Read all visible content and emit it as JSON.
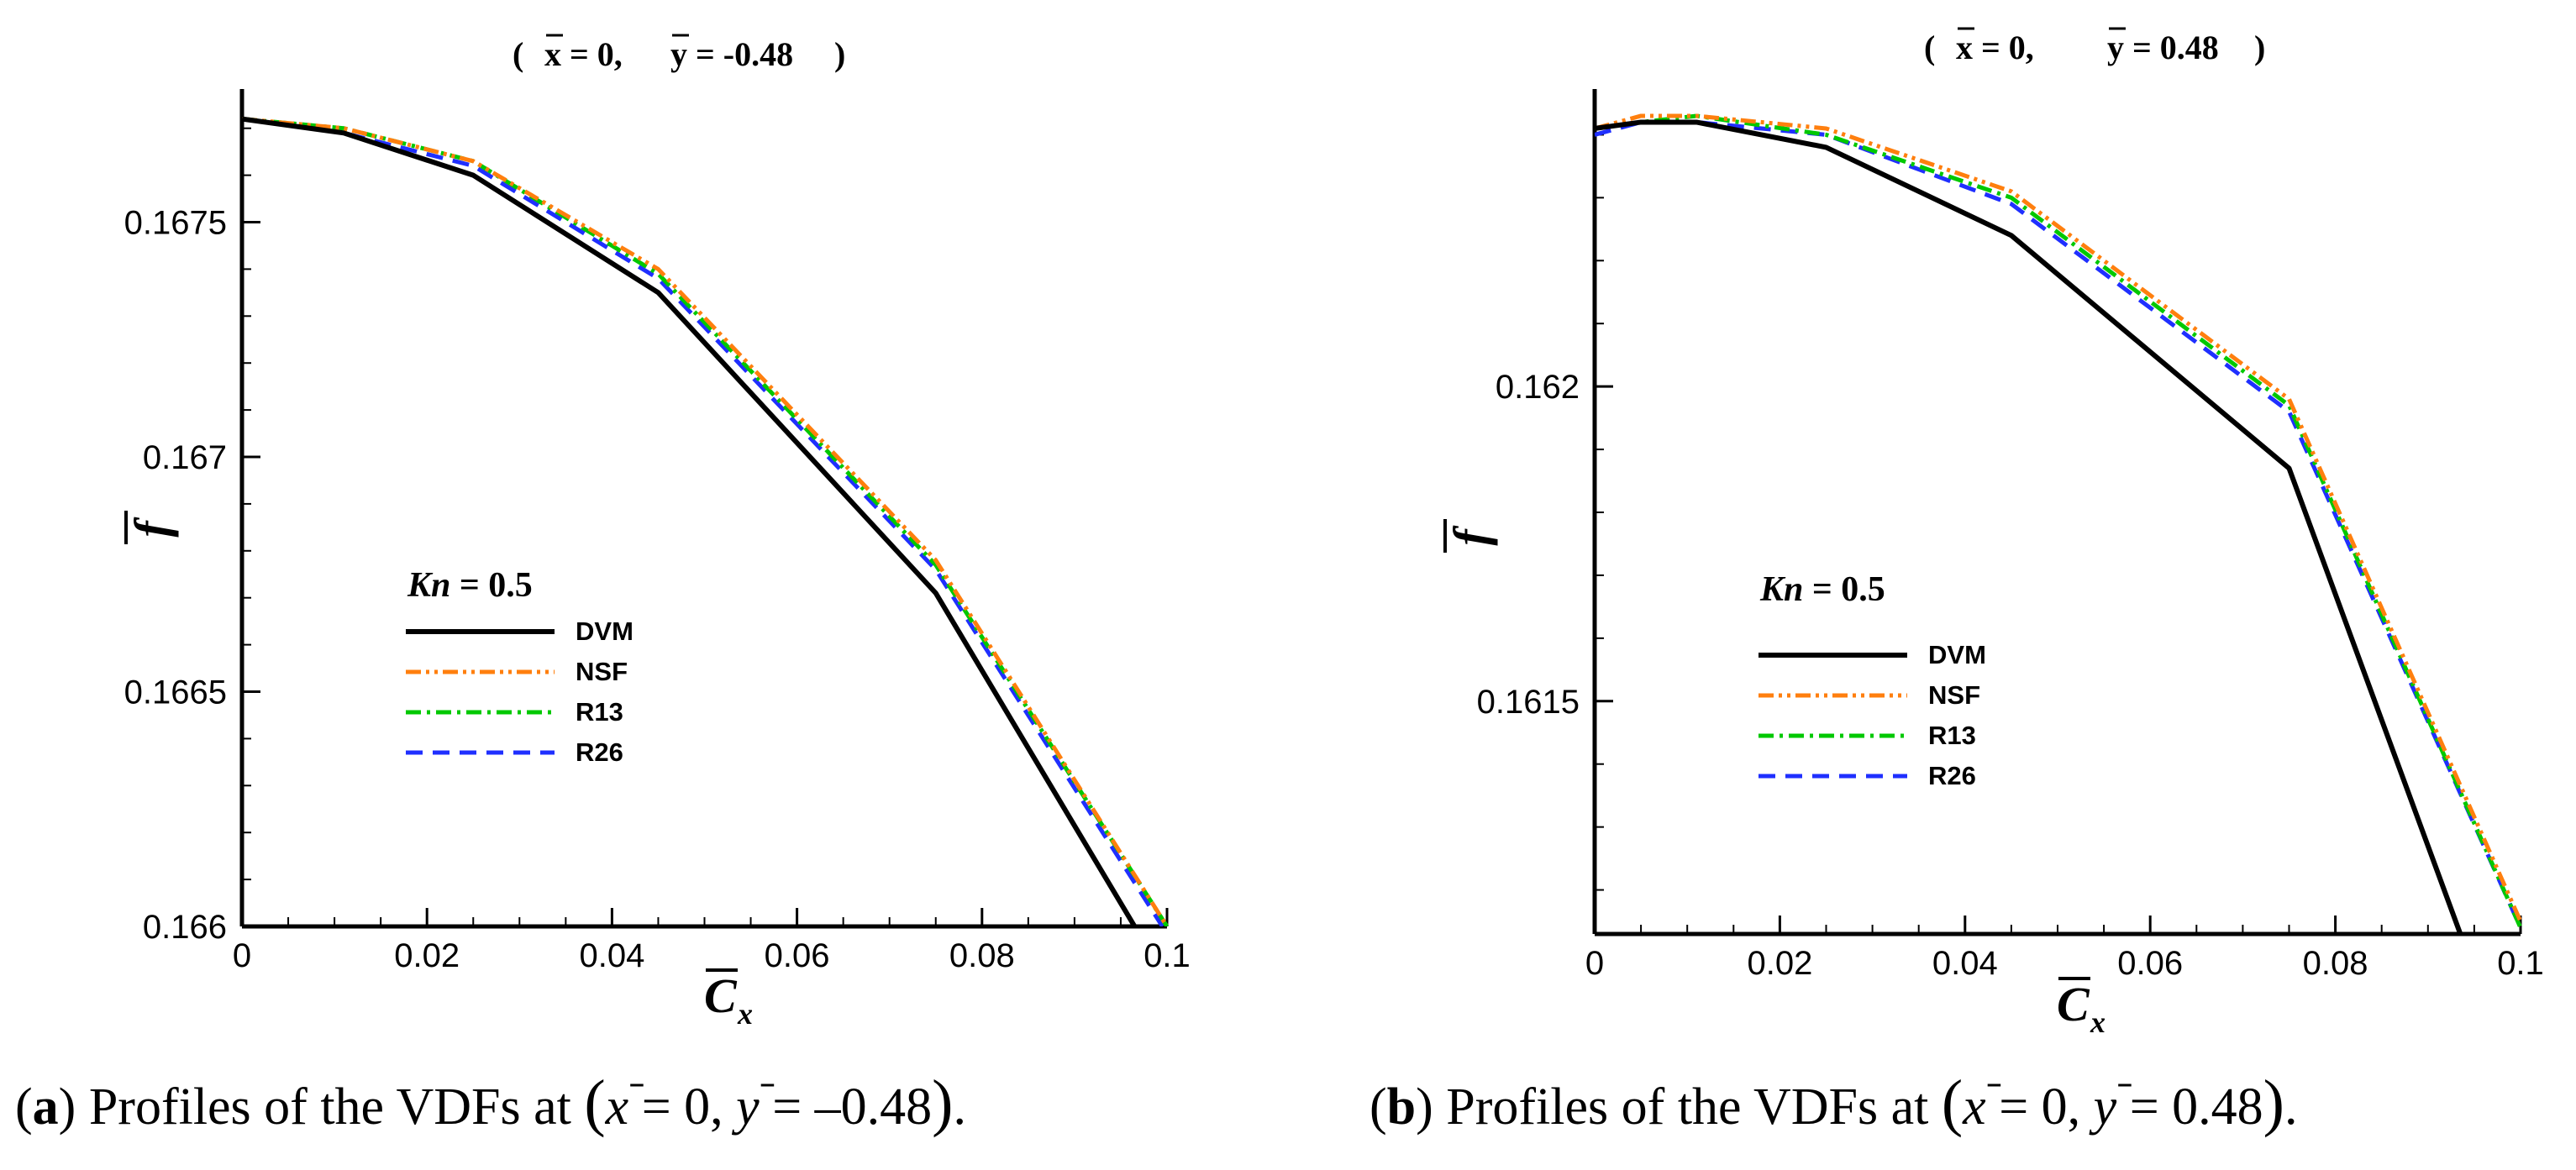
{
  "colors": {
    "DVM": "#000000",
    "NSF": "#ff7f0e",
    "R13": "#00c800",
    "R26": "#1f2fff"
  },
  "chart_data": [
    {
      "type": "line",
      "panel_id": "a",
      "title_prefix": "(",
      "title_xbar": "x",
      "title_xval": "= 0,",
      "title_ybar": "y",
      "title_yval": "= -0.48",
      "title_suffix": ")",
      "xlabel": "C",
      "xlabel_sub": "x",
      "ylabel": "f",
      "xlim": [
        0,
        0.1
      ],
      "ylim": [
        0.166,
        0.16778
      ],
      "xticks": [
        0,
        0.02,
        0.04,
        0.06,
        0.08,
        0.1
      ],
      "xtick_labels": [
        "0",
        "0.02",
        "0.04",
        "0.06",
        "0.08",
        "0.1"
      ],
      "yticks": [
        0.166,
        0.1665,
        0.167,
        0.1675
      ],
      "ytick_labels": [
        "0.166",
        "0.1665",
        "0.167",
        "0.1675"
      ],
      "yminor": [
        0.1661,
        0.1662,
        0.1663,
        0.1664,
        0.1666,
        0.1667,
        0.1668,
        0.1669,
        0.1671,
        0.1672,
        0.1673,
        0.1674,
        0.1676,
        0.1677
      ],
      "legend_title": "Kn = 0.5",
      "legend_title_var": "Kn",
      "legend_title_val": " = 0.5",
      "series": [
        {
          "name": "DVM",
          "x": [
            0,
            0.011,
            0.025,
            0.045,
            0.075,
            0.0965
          ],
          "y": [
            0.16772,
            0.16769,
            0.1676,
            0.16735,
            0.16671,
            0.166
          ]
        },
        {
          "name": "NSF",
          "x": [
            0,
            0.011,
            0.025,
            0.045,
            0.075,
            0.1
          ],
          "y": [
            0.16772,
            0.1677,
            0.16763,
            0.1674,
            0.16678,
            0.166
          ]
        },
        {
          "name": "R13",
          "x": [
            0,
            0.011,
            0.025,
            0.045,
            0.075,
            0.1
          ],
          "y": [
            0.16772,
            0.1677,
            0.16763,
            0.16739,
            0.16677,
            0.166
          ]
        },
        {
          "name": "R26",
          "x": [
            0,
            0.011,
            0.025,
            0.045,
            0.075,
            0.0995
          ],
          "y": [
            0.16772,
            0.16769,
            0.16762,
            0.16738,
            0.16676,
            0.166
          ]
        }
      ],
      "caption_label": "a",
      "caption_text": " Profiles of the VDFs at ",
      "caption_math": "x = 0, y = −0.48",
      "caption_math_x": "x",
      "caption_math_xv": " = 0, ",
      "caption_math_y": "y",
      "caption_math_yv": " = –0.48"
    },
    {
      "type": "line",
      "panel_id": "b",
      "title_prefix": "(",
      "title_xbar": "x",
      "title_xval": "= 0,",
      "title_ybar": "y",
      "title_yval": "= 0.48",
      "title_suffix": ")",
      "xlabel": "C",
      "xlabel_sub": "x",
      "ylabel": "f",
      "xlim": [
        0,
        0.1
      ],
      "ylim": [
        0.16113,
        0.16247
      ],
      "xticks": [
        0,
        0.02,
        0.04,
        0.06,
        0.08,
        0.1
      ],
      "xtick_labels": [
        "0",
        "0.02",
        "0.04",
        "0.06",
        "0.08",
        "0.1"
      ],
      "yticks": [
        0.1615,
        0.162
      ],
      "ytick_labels": [
        "0.1615",
        "0.162"
      ],
      "yminor": [
        0.1612,
        0.1613,
        0.1614,
        0.1616,
        0.1617,
        0.1618,
        0.1619,
        0.1621,
        0.1622,
        0.1623,
        0.1624
      ],
      "legend_title": "Kn = 0.5",
      "legend_title_var": "Kn",
      "legend_title_val": " = 0.5",
      "series": [
        {
          "name": "DVM",
          "x": [
            0,
            0.005,
            0.011,
            0.025,
            0.045,
            0.075,
            0.0935
          ],
          "y": [
            0.16241,
            0.16242,
            0.16242,
            0.16238,
            0.16224,
            0.16187,
            0.16113
          ]
        },
        {
          "name": "NSF",
          "x": [
            0,
            0.005,
            0.011,
            0.025,
            0.045,
            0.075,
            0.1
          ],
          "y": [
            0.16241,
            0.16243,
            0.16243,
            0.16241,
            0.16231,
            0.16198,
            0.16115
          ]
        },
        {
          "name": "R13",
          "x": [
            0,
            0.005,
            0.011,
            0.025,
            0.045,
            0.075,
            0.1
          ],
          "y": [
            0.16241,
            0.16242,
            0.16243,
            0.1624,
            0.1623,
            0.16197,
            0.16114
          ]
        },
        {
          "name": "R26",
          "x": [
            0,
            0.005,
            0.011,
            0.025,
            0.045,
            0.075,
            0.1
          ],
          "y": [
            0.1624,
            0.16242,
            0.16242,
            0.1624,
            0.16229,
            0.16196,
            0.16114
          ]
        }
      ],
      "caption_label": "b",
      "caption_text": " Profiles of the VDFs at ",
      "caption_math": "x = 0, y = 0.48",
      "caption_math_x": "x",
      "caption_math_xv": " = 0, ",
      "caption_math_y": "y",
      "caption_math_yv": " = 0.48"
    }
  ]
}
